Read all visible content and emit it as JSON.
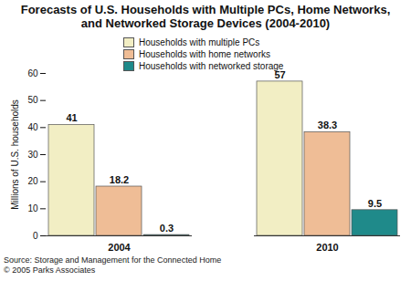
{
  "chart_data": {
    "type": "bar",
    "title": "Forecasts of U.S. Households with Multiple PCs, Home Networks, and Networked Storage Devices (2004-2010)",
    "y_label": "Millions of U.S. households",
    "categories": [
      "2004",
      "2010"
    ],
    "series": [
      {
        "name": "Households with multiple PCs",
        "color": "#f2eec4",
        "values": [
          41,
          57
        ]
      },
      {
        "name": "Households with home networks",
        "color": "#efbd96",
        "values": [
          18.2,
          38.3
        ]
      },
      {
        "name": "Households with networked storage",
        "color": "#1f8a8a",
        "values": [
          0.3,
          9.5
        ]
      }
    ],
    "ylim": [
      0,
      60
    ],
    "yticks": [
      0,
      10,
      20,
      30,
      40,
      50,
      60
    ],
    "grid": false,
    "legend": "top",
    "data_labels": true,
    "annotations": [
      "Source: Storage and Management for the Connected Home",
      "© 2005 Parks Associates"
    ]
  }
}
